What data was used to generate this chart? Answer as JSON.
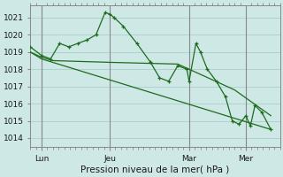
{
  "background_color": "#cde8e5",
  "grid_color": "#a8ceca",
  "line_color": "#1e6b1e",
  "ylabel_ticks": [
    1014,
    1015,
    1016,
    1017,
    1018,
    1019,
    1020,
    1021
  ],
  "ylim": [
    1013.5,
    1021.7
  ],
  "xlabel": "Pression niveau de la mer( hPa )",
  "xlabel_fontsize": 7.5,
  "tick_fontsize": 6.5,
  "xtick_labels": [
    "Lun",
    "Jeu",
    "Mar",
    "Mer"
  ],
  "xtick_positions": [
    0.5,
    3.5,
    7.0,
    9.5
  ],
  "xlim": [
    0,
    11
  ],
  "vline_positions": [
    0.5,
    3.5,
    7.0,
    9.5
  ],
  "series1_x": [
    0.0,
    0.5,
    0.9,
    1.3,
    1.7,
    2.1,
    2.5,
    2.9,
    3.3,
    3.5,
    3.7,
    4.1,
    4.7,
    5.3,
    5.7,
    6.1,
    6.5,
    6.9,
    7.0,
    7.3,
    7.5,
    7.8,
    8.2,
    8.6,
    8.9,
    9.2,
    9.5,
    9.7,
    9.9,
    10.2,
    10.6
  ],
  "series1_y": [
    1019.3,
    1018.8,
    1018.6,
    1019.5,
    1019.3,
    1019.5,
    1019.7,
    1020.0,
    1021.3,
    1021.2,
    1021.0,
    1020.5,
    1019.5,
    1018.4,
    1017.5,
    1017.3,
    1018.2,
    1018.0,
    1017.3,
    1019.5,
    1019.0,
    1018.0,
    1017.3,
    1016.4,
    1015.0,
    1014.8,
    1015.3,
    1014.7,
    1015.9,
    1015.5,
    1014.5
  ],
  "series2_x": [
    0.0,
    0.5,
    1.0,
    3.5,
    6.5,
    7.0,
    8.0,
    9.0,
    10.6
  ],
  "series2_y": [
    1019.0,
    1018.7,
    1018.5,
    1018.4,
    1018.3,
    1018.0,
    1017.4,
    1016.8,
    1015.3
  ],
  "series3_x": [
    0.0,
    0.5,
    10.6
  ],
  "series3_y": [
    1019.0,
    1018.6,
    1014.5
  ]
}
